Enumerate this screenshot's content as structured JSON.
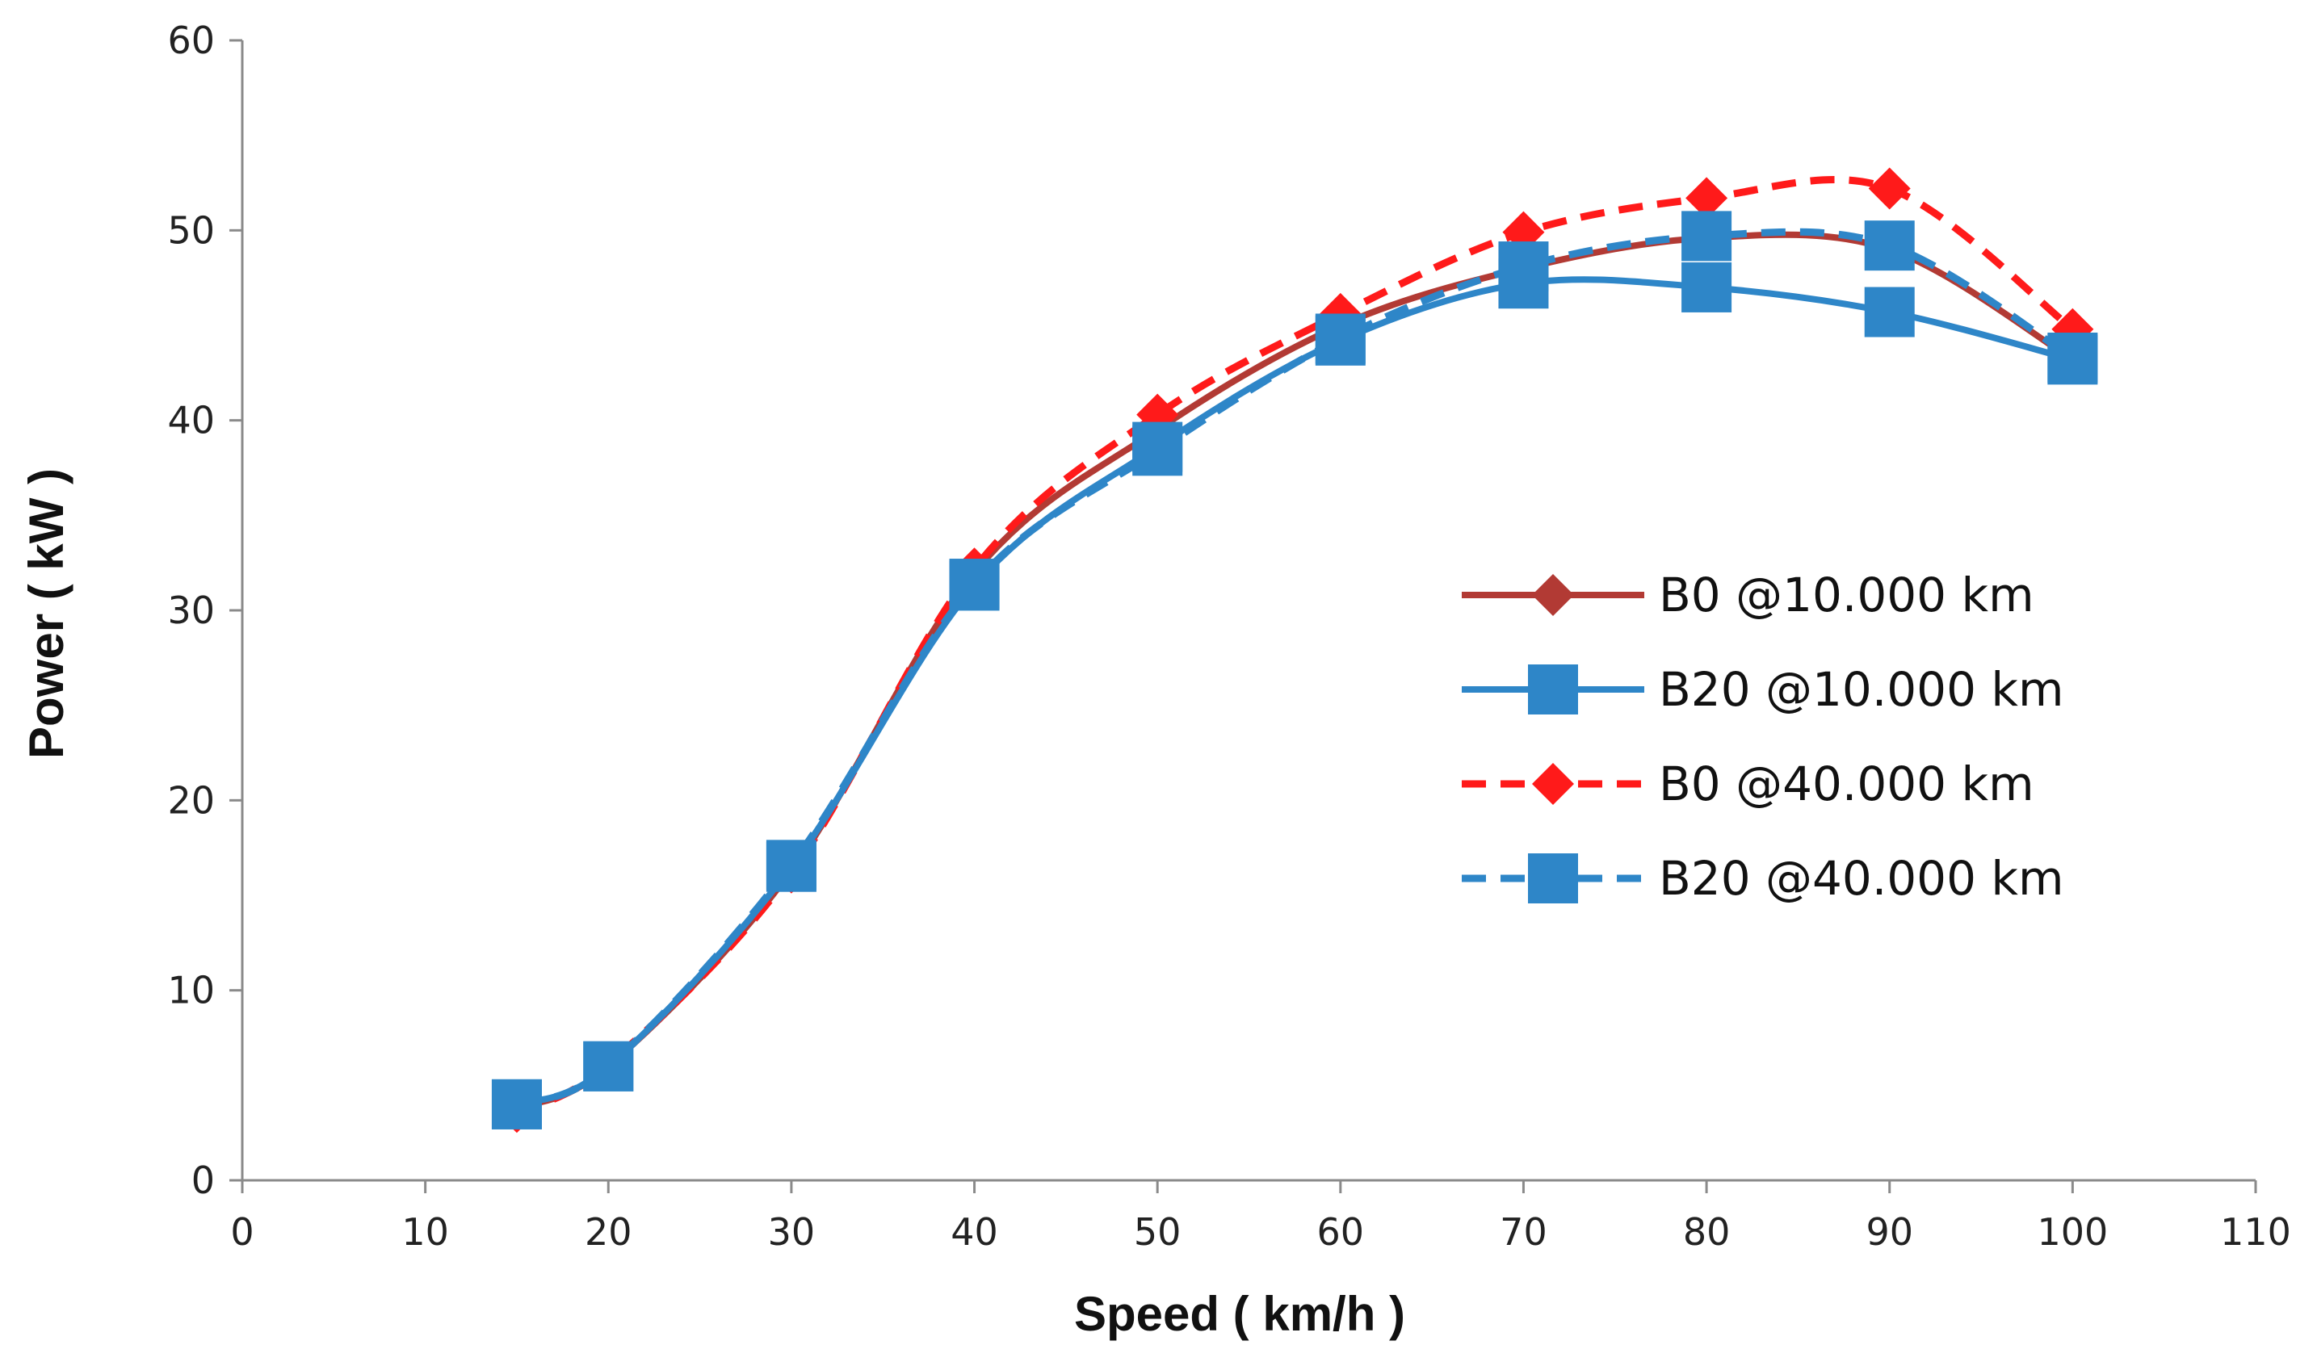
{
  "chart_data": {
    "type": "line",
    "title": "",
    "xlabel": "Speed ( km/h )",
    "ylabel": "Power ( kW )",
    "xlim": [
      0,
      110
    ],
    "ylim": [
      0,
      60
    ],
    "xticks": [
      0,
      10,
      20,
      30,
      40,
      50,
      60,
      70,
      80,
      90,
      100,
      110
    ],
    "yticks": [
      0,
      10,
      20,
      30,
      40,
      50,
      60
    ],
    "grid": false,
    "legend_position": "right",
    "series": [
      {
        "name": "B0 @10.000 km",
        "color": "#b23a34",
        "dash": "solid",
        "marker": "diamond",
        "x": [
          15,
          20,
          30,
          40,
          50,
          60,
          70,
          80,
          90,
          100
        ],
        "values": [
          3.8,
          6.0,
          16.3,
          32.0,
          39.5,
          45.0,
          48.0,
          49.6,
          49.0,
          43.2
        ]
      },
      {
        "name": "B20 @10.000 km",
        "color": "#2e86c8",
        "dash": "solid",
        "marker": "square",
        "x": [
          15,
          20,
          30,
          40,
          50,
          60,
          70,
          80,
          90,
          100
        ],
        "values": [
          4.0,
          6.0,
          16.5,
          31.3,
          38.6,
          44.2,
          47.2,
          47.0,
          45.7,
          43.2
        ]
      },
      {
        "name": "B0 @40.000 km",
        "color": "#ff1a1a",
        "dash": "dashed",
        "marker": "diamond",
        "x": [
          15,
          20,
          30,
          40,
          50,
          60,
          70,
          80,
          90,
          100
        ],
        "values": [
          3.6,
          6.1,
          16.2,
          32.2,
          40.3,
          45.6,
          49.9,
          51.7,
          52.2,
          44.8
        ]
      },
      {
        "name": "B20 @40.000 km",
        "color": "#2e86c8",
        "dash": "dashed",
        "marker": "square",
        "x": [
          15,
          20,
          30,
          40,
          50,
          60,
          70,
          80,
          90,
          100
        ],
        "values": [
          4.0,
          6.0,
          16.6,
          31.4,
          38.4,
          44.3,
          48.1,
          49.7,
          49.2,
          43.3
        ]
      }
    ]
  }
}
